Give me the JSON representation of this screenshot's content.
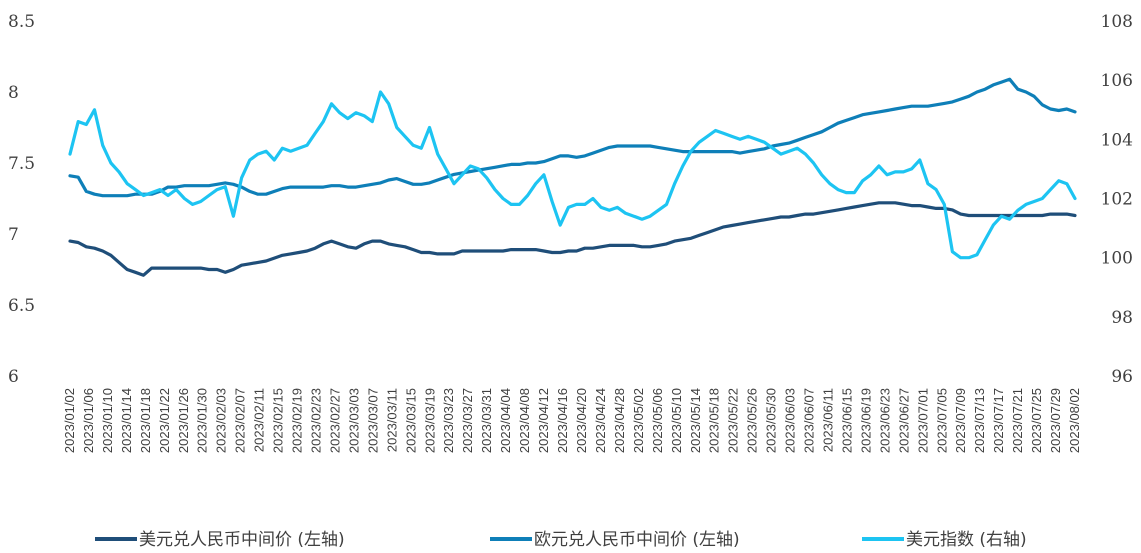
{
  "chart_data": {
    "type": "line",
    "title": "",
    "y_left": {
      "ylim": [
        6,
        8.5
      ],
      "ticks": [
        "6",
        "6.5",
        "7",
        "7.5",
        "8",
        "8.5"
      ]
    },
    "y_right": {
      "ylim": [
        96,
        108
      ],
      "ticks": [
        "96",
        "98",
        "100",
        "102",
        "104",
        "106",
        "108"
      ]
    },
    "x_ticks": [
      "2023/01/02",
      "2023/01/06",
      "2023/01/10",
      "2023/01/14",
      "2023/01/18",
      "2023/01/22",
      "2023/01/26",
      "2023/01/30",
      "2023/02/03",
      "2023/02/07",
      "2023/02/11",
      "2023/02/15",
      "2023/02/19",
      "2023/02/23",
      "2023/02/27",
      "2023/03/03",
      "2023/03/07",
      "2023/03/11",
      "2023/03/15",
      "2023/03/19",
      "2023/03/23",
      "2023/03/27",
      "2023/03/31",
      "2023/04/04",
      "2023/04/08",
      "2023/04/12",
      "2023/04/16",
      "2023/04/20",
      "2023/04/24",
      "2023/04/28",
      "2023/05/02",
      "2023/05/06",
      "2023/05/10",
      "2023/05/14",
      "2023/05/18",
      "2023/05/22",
      "2023/05/26",
      "2023/05/30",
      "2023/06/03",
      "2023/06/07",
      "2023/06/11",
      "2023/06/15",
      "2023/06/19",
      "2023/06/23",
      "2023/06/27",
      "2023/07/01",
      "2023/07/05",
      "2023/07/09",
      "2023/07/13",
      "2023/07/17",
      "2023/07/21",
      "2023/07/25",
      "2023/07/29",
      "2023/08/02"
    ],
    "series": [
      {
        "name": "美元兑人民币中间价 (左轴)",
        "axis": "left",
        "color": "#1F4E79",
        "values": [
          6.95,
          6.94,
          6.91,
          6.9,
          6.88,
          6.85,
          6.8,
          6.75,
          6.73,
          6.71,
          6.76,
          6.76,
          6.76,
          6.76,
          6.76,
          6.76,
          6.76,
          6.75,
          6.75,
          6.73,
          6.75,
          6.78,
          6.79,
          6.8,
          6.81,
          6.83,
          6.85,
          6.86,
          6.87,
          6.88,
          6.9,
          6.93,
          6.95,
          6.93,
          6.91,
          6.9,
          6.93,
          6.95,
          6.95,
          6.93,
          6.92,
          6.91,
          6.89,
          6.87,
          6.87,
          6.86,
          6.86,
          6.86,
          6.88,
          6.88,
          6.88,
          6.88,
          6.88,
          6.88,
          6.89,
          6.89,
          6.89,
          6.89,
          6.88,
          6.87,
          6.87,
          6.88,
          6.88,
          6.9,
          6.9,
          6.91,
          6.92,
          6.92,
          6.92,
          6.92,
          6.91,
          6.91,
          6.92,
          6.93,
          6.95,
          6.96,
          6.97,
          6.99,
          7.01,
          7.03,
          7.05,
          7.06,
          7.07,
          7.08,
          7.09,
          7.1,
          7.11,
          7.12,
          7.12,
          7.13,
          7.14,
          7.14,
          7.15,
          7.16,
          7.17,
          7.18,
          7.19,
          7.2,
          7.21,
          7.22,
          7.22,
          7.22,
          7.21,
          7.2,
          7.2,
          7.19,
          7.18,
          7.18,
          7.17,
          7.14,
          7.13,
          7.13,
          7.13,
          7.13,
          7.13,
          7.13,
          7.13,
          7.13,
          7.13,
          7.13,
          7.14,
          7.14,
          7.14,
          7.13
        ]
      },
      {
        "name": "欧元兑人民币中间价 (左轴)",
        "axis": "left",
        "color": "#0E7FB8",
        "values": [
          7.41,
          7.4,
          7.3,
          7.28,
          7.27,
          7.27,
          7.27,
          7.27,
          7.28,
          7.28,
          7.28,
          7.3,
          7.33,
          7.33,
          7.34,
          7.34,
          7.34,
          7.34,
          7.35,
          7.36,
          7.35,
          7.33,
          7.3,
          7.28,
          7.28,
          7.3,
          7.32,
          7.33,
          7.33,
          7.33,
          7.33,
          7.33,
          7.34,
          7.34,
          7.33,
          7.33,
          7.34,
          7.35,
          7.36,
          7.38,
          7.39,
          7.37,
          7.35,
          7.35,
          7.36,
          7.38,
          7.4,
          7.42,
          7.43,
          7.44,
          7.45,
          7.46,
          7.47,
          7.48,
          7.49,
          7.49,
          7.5,
          7.5,
          7.51,
          7.53,
          7.55,
          7.55,
          7.54,
          7.55,
          7.57,
          7.59,
          7.61,
          7.62,
          7.62,
          7.62,
          7.62,
          7.62,
          7.61,
          7.6,
          7.59,
          7.58,
          7.58,
          7.58,
          7.58,
          7.58,
          7.58,
          7.58,
          7.57,
          7.58,
          7.59,
          7.6,
          7.62,
          7.63,
          7.64,
          7.66,
          7.68,
          7.7,
          7.72,
          7.75,
          7.78,
          7.8,
          7.82,
          7.84,
          7.85,
          7.86,
          7.87,
          7.88,
          7.89,
          7.9,
          7.9,
          7.9,
          7.91,
          7.92,
          7.93,
          7.95,
          7.97,
          8.0,
          8.02,
          8.05,
          8.07,
          8.09,
          8.02,
          8.0,
          7.97,
          7.91,
          7.88,
          7.87,
          7.88,
          7.86
        ]
      },
      {
        "name": "美元指数 (右轴)",
        "axis": "right",
        "color": "#1DC4F2",
        "values": [
          103.5,
          104.6,
          104.5,
          105.0,
          103.8,
          103.2,
          102.9,
          102.5,
          102.3,
          102.1,
          102.2,
          102.3,
          102.1,
          102.3,
          102.0,
          101.8,
          101.9,
          102.1,
          102.3,
          102.4,
          101.4,
          102.7,
          103.3,
          103.5,
          103.6,
          103.3,
          103.7,
          103.6,
          103.7,
          103.8,
          104.2,
          104.6,
          105.2,
          104.9,
          104.7,
          104.9,
          104.8,
          104.6,
          105.6,
          105.2,
          104.4,
          104.1,
          103.8,
          103.7,
          104.4,
          103.5,
          103.0,
          102.5,
          102.8,
          103.1,
          103.0,
          102.7,
          102.3,
          102.0,
          101.8,
          101.8,
          102.1,
          102.5,
          102.8,
          101.9,
          101.1,
          101.7,
          101.8,
          101.8,
          102.0,
          101.7,
          101.6,
          101.7,
          101.5,
          101.4,
          101.3,
          101.4,
          101.6,
          101.8,
          102.5,
          103.1,
          103.6,
          103.9,
          104.1,
          104.3,
          104.2,
          104.1,
          104.0,
          104.1,
          104.0,
          103.9,
          103.7,
          103.5,
          103.6,
          103.7,
          103.5,
          103.2,
          102.8,
          102.5,
          102.3,
          102.2,
          102.2,
          102.6,
          102.8,
          103.1,
          102.8,
          102.9,
          102.9,
          103.0,
          103.3,
          102.5,
          102.3,
          101.8,
          100.2,
          100.0,
          100.0,
          100.1,
          100.6,
          101.1,
          101.4,
          101.3,
          101.6,
          101.8,
          101.9,
          102.0,
          102.3,
          102.6,
          102.5,
          102.0
        ]
      }
    ],
    "legend": {
      "placement": "bottom",
      "entries": [
        "美元兑人民币中间价 (左轴)",
        "欧元兑人民币中间价 (左轴)",
        "美元指数 (右轴)"
      ]
    },
    "grid": false
  }
}
